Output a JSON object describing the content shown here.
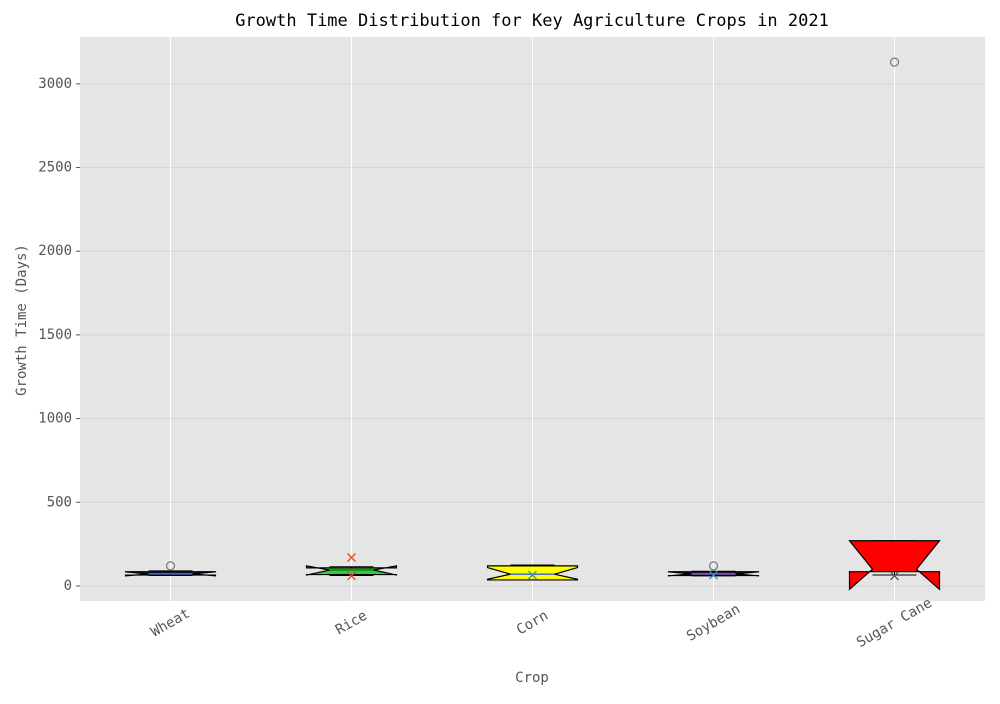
{
  "chart_data": {
    "type": "box",
    "title": "Growth Time Distribution for Key Agriculture Crops in 2021",
    "x_label": "Crop",
    "y_label": "Growth Time (Days)",
    "categories": [
      "Wheat",
      "Rice",
      "Corn",
      "Soybean",
      "Sugar Cane"
    ],
    "boxes": [
      {
        "color": "#1a1a40",
        "median_color": "#4472c4",
        "whislo": 62,
        "q1": 65,
        "med": 72,
        "q3": 85,
        "whishi": 90,
        "notch": [
          60,
          84
        ],
        "points": [
          {
            "value": 120,
            "marker": "o",
            "color": "#777777"
          }
        ]
      },
      {
        "color": "#33cc33",
        "median_color": "#1a7a1a",
        "whislo": 62,
        "q1": 68,
        "med": 95,
        "q3": 108,
        "whishi": 115,
        "notch": [
          65,
          120
        ],
        "points": [
          {
            "value": 170,
            "marker": "x",
            "color": "#e24a33"
          },
          {
            "value": 60,
            "marker": "x",
            "color": "#e24a33"
          }
        ]
      },
      {
        "color": "#ffff00",
        "median_color": "#4472c4",
        "whislo": 36,
        "q1": 36,
        "med": 70,
        "q3": 120,
        "whishi": 125,
        "notch": [
          40,
          110
        ],
        "points": [
          {
            "value": 65,
            "marker": "x",
            "color": "#348abd"
          }
        ]
      },
      {
        "color": "#1a1a40",
        "median_color": "#9b59b6",
        "whislo": 60,
        "q1": 62,
        "med": 72,
        "q3": 85,
        "whishi": 88,
        "notch": [
          60,
          84
        ],
        "points": [
          {
            "value": 120,
            "marker": "o",
            "color": "#777777"
          },
          {
            "value": 65,
            "marker": "x",
            "color": "#348abd"
          }
        ]
      },
      {
        "color": "#ff0000",
        "median_color": "#ff0000",
        "whislo": 65,
        "q1": 85,
        "med": 100,
        "q3": 270,
        "whishi": 270,
        "notch": [
          -20,
          270
        ],
        "points": [
          {
            "value": 3130,
            "marker": "o",
            "color": "#777777"
          },
          {
            "value": 60,
            "marker": "x",
            "color": "#555555"
          }
        ]
      }
    ],
    "ylim": [
      -90,
      3280
    ],
    "yticks": [
      0,
      500,
      1000,
      1500,
      2000,
      2500,
      3000
    ],
    "grid": true
  }
}
